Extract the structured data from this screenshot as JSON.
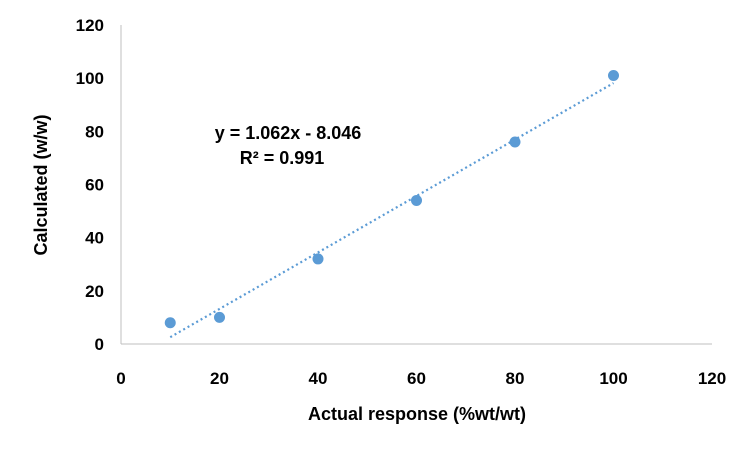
{
  "chart_data": {
    "type": "scatter",
    "title": "",
    "xlabel": "Actual response (%wt/wt)",
    "ylabel": "Calculated (w/w)",
    "xlim": [
      0,
      120
    ],
    "ylim": [
      0,
      120
    ],
    "x_ticks": [
      0,
      20,
      40,
      60,
      80,
      100,
      120
    ],
    "y_ticks": [
      0,
      20,
      40,
      60,
      80,
      100,
      120
    ],
    "grid": false,
    "legend": "none",
    "points": [
      {
        "x": 10,
        "y": 8
      },
      {
        "x": 20,
        "y": 10
      },
      {
        "x": 40,
        "y": 32
      },
      {
        "x": 60,
        "y": 54
      },
      {
        "x": 80,
        "y": 76
      },
      {
        "x": 100,
        "y": 101
      }
    ],
    "trendline": {
      "type": "linear",
      "slope": 1.062,
      "intercept": -8.046,
      "x_range": [
        10,
        100
      ],
      "style": "dotted",
      "equation_label": "y = 1.062x - 8.046",
      "r2_label": "R² = 0.991"
    },
    "colors": {
      "marker": "#5B9BD5",
      "trendline": "#5B9BD5",
      "axis": "#BFBFBF"
    }
  }
}
